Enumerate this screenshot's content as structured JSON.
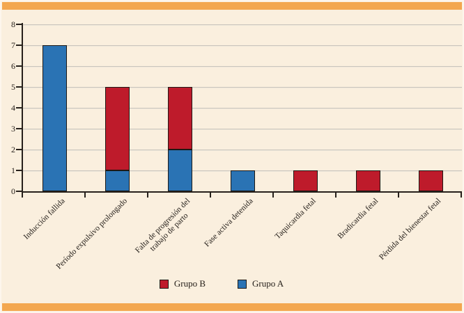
{
  "frame": {
    "background_color": "#faefde",
    "accent_bar_color": "#f3a74f",
    "outer_border_color": "#fdf6ec"
  },
  "chart_data": {
    "type": "bar",
    "stacked": true,
    "orientation": "vertical",
    "title": "",
    "xlabel": "",
    "ylabel": "",
    "categories": [
      "Inducción fallida",
      "Período expulsivo prolongado",
      "Falta de progresión del\ntrabajo de parto",
      "Fase activa detenida",
      "Taquicardia fetal",
      "Bradicardia fetal",
      "Pérdida del bienestar fetal"
    ],
    "series": [
      {
        "name": "Grupo A",
        "color": "#2a73b4",
        "values": [
          7,
          1,
          2,
          1,
          0,
          0,
          0
        ]
      },
      {
        "name": "Grupo B",
        "color": "#be1b2b",
        "values": [
          0,
          4,
          3,
          0,
          1,
          1,
          1
        ]
      }
    ],
    "ylim": [
      0,
      8
    ],
    "yticks": [
      0,
      1,
      2,
      3,
      4,
      5,
      6,
      7,
      8
    ],
    "grid": true,
    "gridline_color": "#c9c4bc",
    "axis_color": "#26201b",
    "legend_position": "bottom-center",
    "legend": [
      {
        "label": "Grupo B",
        "color": "#be1b2b"
      },
      {
        "label": "Grupo A",
        "color": "#2a73b4"
      }
    ]
  }
}
